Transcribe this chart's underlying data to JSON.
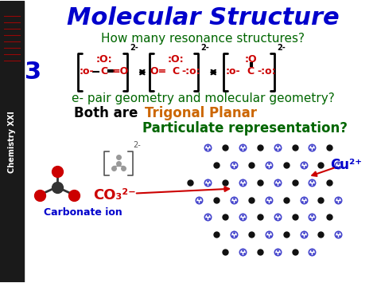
{
  "title": "Molecular Structure",
  "title_color": "#0000CC",
  "title_fontsize": 22,
  "title_bold": true,
  "bg_color": "#FFFFFF",
  "sidebar_color": "#1a1a1a",
  "sidebar_text": "Chemistry XXI",
  "sidebar_text_color": "#FFFFFF",
  "q1_text": "How many resonance structures?",
  "q1_color": "#006600",
  "q1_fontsize": 11,
  "number_3_color": "#0000CC",
  "number_3_fontsize": 22,
  "resonance_color": "#CC0000",
  "bracket_color": "#000000",
  "arrow_color": "#000000",
  "charge_color": "#000000",
  "q2_text": "e- pair geometry and molecular geometry?",
  "q2_color": "#006600",
  "q2_fontsize": 11,
  "both_text": "Both are ",
  "both_bold": true,
  "trigonal_text": "Trigonal Planar",
  "trigonal_color": "#CC6600",
  "trigonal_bold": true,
  "geometry_fontsize": 12,
  "particulate_text": "Particulate representation?",
  "particulate_color": "#006600",
  "particulate_fontsize": 12,
  "co3_label": "CO₃²⁻",
  "co3_color": "#CC0000",
  "co3_fontsize": 13,
  "carbonate_text": "Carbonate ion",
  "carbonate_color": "#0000CC",
  "carbonate_fontsize": 9,
  "cu_label": "Cu²⁺",
  "cu_color": "#0000CC",
  "cu_fontsize": 12,
  "arrow_red_color": "#CC0000"
}
